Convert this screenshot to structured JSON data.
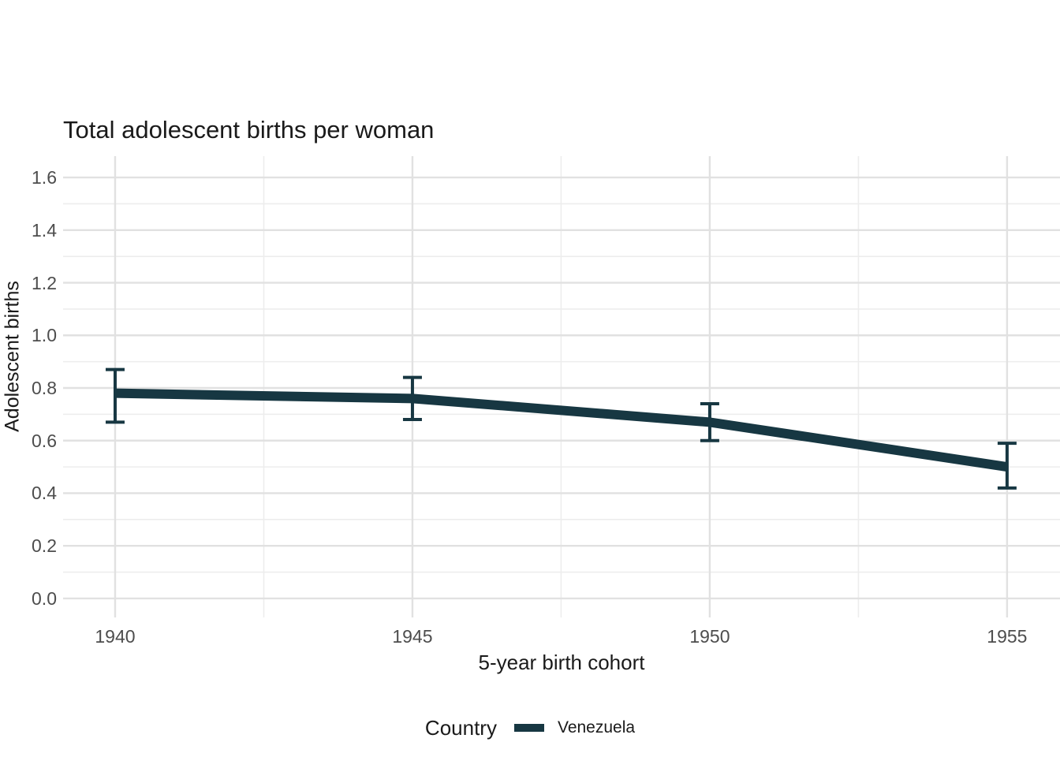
{
  "chart_data": {
    "type": "line",
    "title": "Total adolescent births per woman",
    "xlabel": "5-year birth cohort",
    "ylabel": "Adolescent births",
    "x": [
      1940,
      1945,
      1950,
      1955
    ],
    "series": [
      {
        "name": "Venezuela",
        "color": "#173742",
        "values": [
          0.78,
          0.76,
          0.67,
          0.5
        ],
        "ymin": [
          0.67,
          0.68,
          0.6,
          0.42
        ],
        "ymax": [
          0.87,
          0.84,
          0.74,
          0.59
        ]
      }
    ],
    "xticks": [
      {
        "value": 1940,
        "label": "1940"
      },
      {
        "value": 1945,
        "label": "1945"
      },
      {
        "value": 1950,
        "label": "1950"
      },
      {
        "value": 1955,
        "label": "1955"
      }
    ],
    "yticks": [
      {
        "value": 0.0,
        "label": "0.0"
      },
      {
        "value": 0.2,
        "label": "0.2"
      },
      {
        "value": 0.4,
        "label": "0.4"
      },
      {
        "value": 0.6,
        "label": "0.6"
      },
      {
        "value": 0.8,
        "label": "0.8"
      },
      {
        "value": 1.0,
        "label": "1.0"
      },
      {
        "value": 1.2,
        "label": "1.2"
      },
      {
        "value": 1.4,
        "label": "1.4"
      },
      {
        "value": 1.6,
        "label": "1.6"
      }
    ],
    "xlim": [
      1939.125,
      1955.89
    ],
    "ylim": [
      -0.072,
      1.681
    ],
    "grid": {
      "on": true,
      "major_color": "#e1e1e1",
      "minor_color": "#ededed",
      "x_minor": [
        1942.5,
        1947.5,
        1952.5
      ],
      "y_minor": [
        0.1,
        0.3,
        0.5,
        0.7,
        0.9,
        1.1,
        1.3,
        1.5
      ]
    },
    "legend": {
      "title": "Country",
      "position": "bottom"
    },
    "colors": {
      "background": "#ffffff",
      "tick_text": "#4d4d4d",
      "title_text": "#1a1a1a"
    }
  }
}
